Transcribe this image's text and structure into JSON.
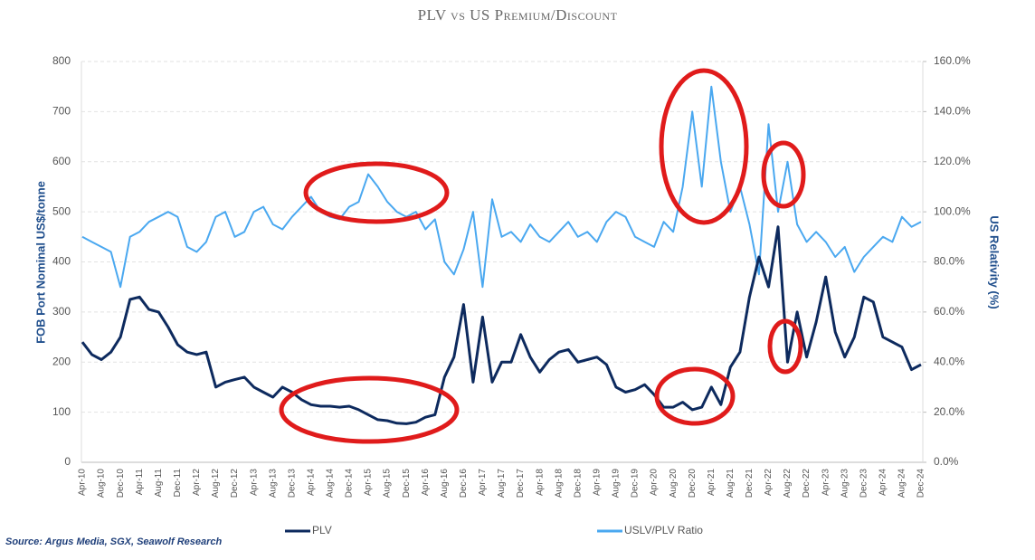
{
  "chart_data": {
    "type": "line",
    "title": "PLV vs US Premium/Discount",
    "y_label": "FOB Port Nominal US$/tonne",
    "y2_label": "US Relativity (%)",
    "source": "Source: Argus Media, SGX, Seawolf Research",
    "categories": [
      "Apr-10",
      null,
      "Aug-10",
      null,
      "Dec-10",
      null,
      "Apr-11",
      null,
      "Aug-11",
      null,
      "Dec-11",
      null,
      "Apr-12",
      null,
      "Aug-12",
      null,
      "Dec-12",
      null,
      "Apr-13",
      null,
      "Aug-13",
      null,
      "Dec-13",
      null,
      "Apr-14",
      null,
      "Aug-14",
      null,
      "Dec-14",
      null,
      "Apr-15",
      null,
      "Aug-15",
      null,
      "Dec-15",
      null,
      "Apr-16",
      null,
      "Aug-16",
      null,
      "Dec-16",
      null,
      "Apr-17",
      null,
      "Aug-17",
      null,
      "Dec-17",
      null,
      "Apr-18",
      null,
      "Aug-18",
      null,
      "Dec-18",
      null,
      "Apr-19",
      null,
      "Aug-19",
      null,
      "Dec-19",
      null,
      "Apr-20",
      null,
      "Aug-20",
      null,
      "Dec-20",
      null,
      "Apr-21",
      null,
      "Aug-21",
      null,
      "Dec-21",
      null,
      "Apr-22",
      null,
      "Aug-22",
      null,
      "Dec-22",
      null,
      "Apr-23",
      null,
      "Aug-23",
      null,
      "Dec-23",
      null,
      "Apr-24",
      null,
      "Aug-24",
      null,
      "Dec-24"
    ],
    "series": [
      {
        "name": "PLV",
        "color": "#0d2a5e",
        "axis": "y",
        "values": [
          240,
          215,
          205,
          220,
          250,
          325,
          330,
          305,
          300,
          270,
          235,
          220,
          215,
          220,
          150,
          160,
          165,
          170,
          150,
          140,
          130,
          150,
          140,
          125,
          115,
          112,
          112,
          110,
          112,
          105,
          95,
          85,
          83,
          78,
          77,
          80,
          90,
          95,
          170,
          210,
          315,
          160,
          290,
          160,
          200,
          200,
          255,
          210,
          180,
          205,
          220,
          225,
          200,
          205,
          210,
          195,
          150,
          140,
          145,
          155,
          135,
          110,
          110,
          120,
          105,
          110,
          150,
          115,
          190,
          220,
          330,
          410,
          350,
          470,
          200,
          300,
          210,
          280,
          370,
          260,
          210,
          250,
          330,
          320,
          250,
          240,
          230,
          185,
          195
        ]
      },
      {
        "name": "USLV/PLV Ratio",
        "color": "#4aa8f0",
        "axis": "y2",
        "values": [
          90,
          88,
          86,
          84,
          70,
          90,
          92,
          96,
          98,
          100,
          98,
          86,
          84,
          88,
          98,
          100,
          90,
          92,
          100,
          102,
          95,
          93,
          98,
          102,
          106,
          100,
          98,
          97,
          102,
          104,
          115,
          110,
          104,
          100,
          98,
          100,
          93,
          97,
          80,
          75,
          85,
          100,
          70,
          105,
          90,
          92,
          88,
          95,
          90,
          88,
          92,
          96,
          90,
          92,
          88,
          96,
          100,
          98,
          90,
          88,
          86,
          96,
          92,
          110,
          140,
          110,
          150,
          120,
          100,
          110,
          95,
          75,
          135,
          100,
          120,
          95,
          88,
          92,
          88,
          82,
          86,
          76,
          82,
          86,
          90,
          88,
          98,
          94,
          96
        ]
      }
    ],
    "ylim": [
      0,
      800
    ],
    "yticks": [
      0,
      100,
      200,
      300,
      400,
      500,
      600,
      700,
      800
    ],
    "y2lim": [
      0,
      160
    ],
    "y2ticks": [
      {
        "value": 0,
        "label": "0.0%"
      },
      {
        "value": 20,
        "label": "20.0%"
      },
      {
        "value": 40,
        "label": "40.0%"
      },
      {
        "value": 60,
        "label": "60.0%"
      },
      {
        "value": 80,
        "label": "80.0%"
      },
      {
        "value": 100,
        "label": "100.0%"
      },
      {
        "value": 120,
        "label": "120.0%"
      },
      {
        "value": 140,
        "label": "140.0%"
      },
      {
        "value": 160,
        "label": "160.0%"
      }
    ],
    "grid": true,
    "legend": "bottom"
  }
}
